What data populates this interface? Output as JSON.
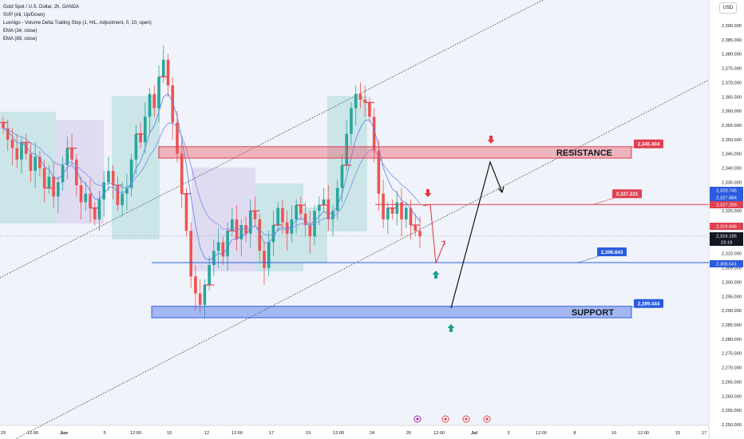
{
  "legend": {
    "symbol": "Gold Spot / U.S. Dollar, 2h, OANDA",
    "ind1": "SVP (All, Up/Down)",
    "ind2": "LuxAlgo - Volume Delta Trailing Stop (1, H/L, Adjustment, 0, 10, open)",
    "ind3": "EMA (34, close)",
    "ind4": "EMA (89, close)"
  },
  "currency": "USD",
  "colors": {
    "up": "#26a69a",
    "down": "#ef5350",
    "ema34": "#5b7fe8",
    "ema89": "#7b8fe0",
    "resistance_fill": "rgba(233,84,98,0.40)",
    "support_fill": "rgba(72,110,230,0.45)",
    "resistance_line": "#e04050",
    "support_line": "#2b5ce0",
    "arrow_red": "#e53946",
    "arrow_teal": "#1a9e8f"
  },
  "chart_data": {
    "type": "candlestick",
    "title": "Gold Spot / U.S. Dollar, 2h, OANDA",
    "ylim": [
      2250,
      2395
    ],
    "y_ticks": [
      2390,
      2385,
      2380,
      2375,
      2370,
      2365,
      2360,
      2355,
      2350,
      2345,
      2340,
      2335,
      2330,
      2325,
      2320,
      2315,
      2310,
      2305,
      2300,
      2295,
      2290,
      2285,
      2280,
      2275,
      2270,
      2265,
      2260,
      2255,
      2250
    ],
    "x_ticks": [
      "29",
      "12:00",
      "Jun",
      "5",
      "12:00",
      "10",
      "12",
      "12:00",
      "17",
      "19",
      "12:00",
      "24",
      "26",
      "12:00",
      "Jul",
      "3",
      "12:00",
      "8",
      "10",
      "12:00",
      "15",
      "17"
    ],
    "zones": [
      {
        "label": "RESISTANCE",
        "from": 2343.5,
        "to": 2347.5,
        "value_label": "2,345.404"
      },
      {
        "label": "SUPPORT",
        "from": 2287.5,
        "to": 2291.5,
        "value_label": "2,289.444"
      }
    ],
    "levels": [
      {
        "value": 2327.221,
        "label": "2,327.221"
      },
      {
        "value": 2306.843,
        "label": "2,306.843"
      }
    ],
    "price_badges": [
      {
        "value": 2329.745,
        "label": "2,329.745"
      },
      {
        "value": 2327.684,
        "label": "2,327.684"
      },
      {
        "value": 2327.299,
        "label": "2,327.299"
      },
      {
        "value": 2319.846,
        "label": "2,319.846"
      },
      {
        "value": 2316.195,
        "label": "2,316.195",
        "countdown": "23:19"
      },
      {
        "value": 2306.541,
        "label": "2,306.541"
      }
    ],
    "ohlc_close_series": [
      2354,
      2350,
      2347,
      2343,
      2349,
      2345,
      2339,
      2344,
      2340,
      2333,
      2337,
      2330,
      2335,
      2341,
      2347,
      2343,
      2334,
      2328,
      2331,
      2326,
      2322,
      2329,
      2335,
      2339,
      2334,
      2327,
      2331,
      2333,
      2343,
      2352,
      2349,
      2358,
      2366,
      2361,
      2372,
      2378,
      2369,
      2356,
      2345,
      2331,
      2318,
      2302,
      2296,
      2292,
      2299,
      2306,
      2311,
      2314,
      2309,
      2318,
      2322,
      2315,
      2320,
      2317,
      2325,
      2322,
      2311,
      2305,
      2314,
      2320,
      2326,
      2321,
      2317,
      2322,
      2327,
      2324,
      2320,
      2316,
      2325,
      2327,
      2329,
      2322,
      2325,
      2333,
      2341,
      2352,
      2361,
      2366,
      2364,
      2363,
      2358,
      2346,
      2331,
      2322,
      2326,
      2324,
      2328,
      2322,
      2326,
      2320,
      2318,
      2316
    ]
  }
}
